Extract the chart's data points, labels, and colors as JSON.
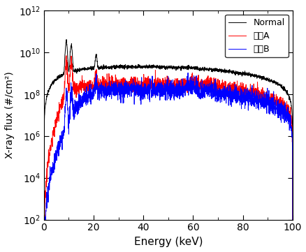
{
  "title": "",
  "xlabel": "Energy (keV)",
  "ylabel": "X-ray flux (#/cm²)",
  "xlim": [
    0,
    100
  ],
  "ylim_log": [
    2,
    12
  ],
  "legend_labels": [
    "Normal",
    "필터A",
    "필터B"
  ],
  "legend_colors": [
    "black",
    "red",
    "blue"
  ],
  "background_color": "#ffffff",
  "figsize": [
    4.39,
    3.61
  ],
  "dpi": 100
}
